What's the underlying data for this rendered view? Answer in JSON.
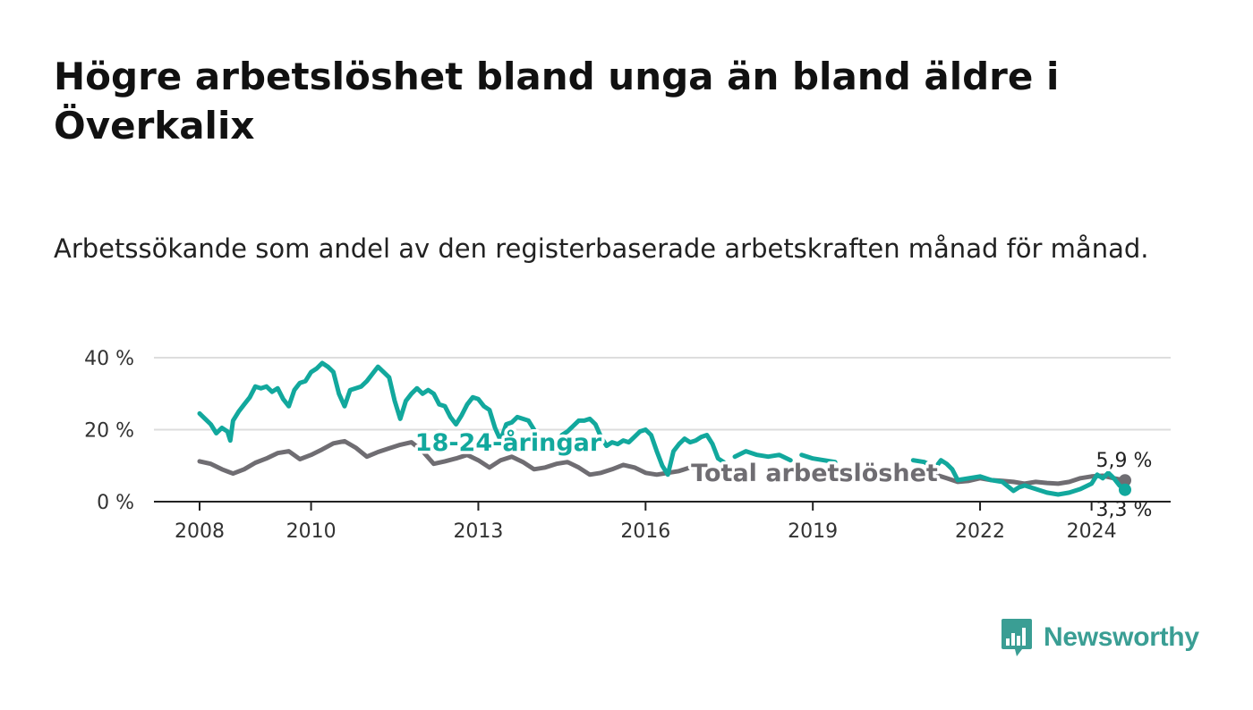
{
  "title": "Högre arbetslöshet bland unga än bland äldre i Överkalix",
  "subtitle": "Arbetssökande som andel av den registerbaserade arbetskraften månad för månad.",
  "brand": "Newsworthy",
  "colors": {
    "youth": "#12a89d",
    "total": "#6f6d72",
    "grid": "#dddddd",
    "axis": "#222222",
    "brand": "#3a9e94"
  },
  "chart_data": {
    "type": "line",
    "ylim": [
      0,
      40
    ],
    "xlim": [
      2008.0,
      2024.6
    ],
    "y_ticks": [
      {
        "value": 0,
        "label": "0 %"
      },
      {
        "value": 20,
        "label": "20 %"
      },
      {
        "value": 40,
        "label": "40 %"
      }
    ],
    "x_ticks": [
      {
        "value": 2008,
        "label": "2008"
      },
      {
        "value": 2010,
        "label": "2010"
      },
      {
        "value": 2013,
        "label": "2013"
      },
      {
        "value": 2016,
        "label": "2016"
      },
      {
        "value": 2019,
        "label": "2019"
      },
      {
        "value": 2022,
        "label": "2022"
      },
      {
        "value": 2024,
        "label": "2024"
      }
    ],
    "grid": true,
    "series": [
      {
        "name": "Total arbetslöshet",
        "color": "#6f6d72",
        "end_label": "5,9 %",
        "points": [
          [
            2008.0,
            11.2
          ],
          [
            2008.2,
            10.5
          ],
          [
            2008.4,
            9.0
          ],
          [
            2008.6,
            7.8
          ],
          [
            2008.8,
            9.0
          ],
          [
            2009.0,
            10.8
          ],
          [
            2009.2,
            12.0
          ],
          [
            2009.4,
            13.5
          ],
          [
            2009.6,
            14.0
          ],
          [
            2009.8,
            11.8
          ],
          [
            2010.0,
            13.0
          ],
          [
            2010.2,
            14.5
          ],
          [
            2010.4,
            16.2
          ],
          [
            2010.6,
            16.8
          ],
          [
            2010.8,
            15.0
          ],
          [
            2011.0,
            12.5
          ],
          [
            2011.2,
            13.8
          ],
          [
            2011.4,
            14.8
          ],
          [
            2011.6,
            15.8
          ],
          [
            2011.8,
            16.5
          ],
          [
            2012.0,
            14.0
          ],
          [
            2012.2,
            10.5
          ],
          [
            2012.4,
            11.2
          ],
          [
            2012.6,
            12.0
          ],
          [
            2012.8,
            13.0
          ],
          [
            2013.0,
            11.5
          ],
          [
            2013.2,
            9.5
          ],
          [
            2013.4,
            11.5
          ],
          [
            2013.6,
            12.5
          ],
          [
            2013.8,
            11.0
          ],
          [
            2014.0,
            9.0
          ],
          [
            2014.2,
            9.5
          ],
          [
            2014.4,
            10.5
          ],
          [
            2014.6,
            11.0
          ],
          [
            2014.8,
            9.5
          ],
          [
            2015.0,
            7.5
          ],
          [
            2015.2,
            8.0
          ],
          [
            2015.4,
            9.0
          ],
          [
            2015.6,
            10.2
          ],
          [
            2015.8,
            9.5
          ],
          [
            2016.0,
            8.0
          ],
          [
            2016.2,
            7.5
          ],
          [
            2016.4,
            8.0
          ],
          [
            2016.6,
            8.5
          ],
          [
            2016.8,
            9.5
          ],
          [
            2017.0,
            9.0
          ],
          [
            2017.2,
            9.5
          ],
          [
            2017.4,
            9.0
          ],
          null,
          [
            2021.0,
            8.8
          ],
          [
            2021.2,
            7.5
          ],
          [
            2021.4,
            6.5
          ],
          [
            2021.6,
            5.5
          ],
          [
            2021.8,
            5.8
          ],
          [
            2022.0,
            6.5
          ],
          [
            2022.2,
            6.0
          ],
          [
            2022.4,
            5.8
          ],
          [
            2022.6,
            5.5
          ],
          [
            2022.8,
            5.0
          ],
          [
            2023.0,
            5.5
          ],
          [
            2023.2,
            5.2
          ],
          [
            2023.4,
            5.0
          ],
          [
            2023.6,
            5.5
          ],
          [
            2023.8,
            6.5
          ],
          [
            2024.0,
            7.0
          ],
          [
            2024.2,
            7.2
          ],
          [
            2024.4,
            6.5
          ],
          [
            2024.6,
            5.9
          ]
        ]
      },
      {
        "name": "18-24-åringar",
        "color": "#12a89d",
        "end_label": "3,3 %",
        "points": [
          [
            2008.0,
            24.5
          ],
          [
            2008.1,
            23.0
          ],
          [
            2008.2,
            21.5
          ],
          [
            2008.3,
            19.0
          ],
          [
            2008.4,
            20.5
          ],
          [
            2008.5,
            19.5
          ],
          [
            2008.55,
            17.0
          ],
          [
            2008.6,
            22.5
          ],
          [
            2008.7,
            25.0
          ],
          [
            2008.8,
            27.0
          ],
          [
            2008.9,
            29.0
          ],
          [
            2009.0,
            32.0
          ],
          [
            2009.1,
            31.5
          ],
          [
            2009.2,
            32.0
          ],
          [
            2009.3,
            30.5
          ],
          [
            2009.4,
            31.5
          ],
          [
            2009.5,
            28.5
          ],
          [
            2009.6,
            26.5
          ],
          [
            2009.7,
            31.0
          ],
          [
            2009.8,
            33.0
          ],
          [
            2009.9,
            33.5
          ],
          [
            2010.0,
            36.0
          ],
          [
            2010.1,
            37.0
          ],
          [
            2010.2,
            38.5
          ],
          [
            2010.3,
            37.5
          ],
          [
            2010.4,
            36.0
          ],
          [
            2010.5,
            30.0
          ],
          [
            2010.6,
            26.5
          ],
          [
            2010.7,
            31.0
          ],
          [
            2010.8,
            31.5
          ],
          [
            2010.9,
            32.0
          ],
          [
            2011.0,
            33.5
          ],
          [
            2011.1,
            35.5
          ],
          [
            2011.2,
            37.5
          ],
          [
            2011.3,
            36.0
          ],
          [
            2011.4,
            34.5
          ],
          [
            2011.5,
            28.0
          ],
          [
            2011.6,
            23.0
          ],
          [
            2011.7,
            28.0
          ],
          [
            2011.8,
            30.0
          ],
          [
            2011.9,
            31.5
          ],
          [
            2012.0,
            30.0
          ],
          [
            2012.1,
            31.0
          ],
          [
            2012.2,
            30.0
          ],
          [
            2012.3,
            27.0
          ],
          [
            2012.4,
            26.5
          ],
          [
            2012.5,
            23.5
          ],
          [
            2012.6,
            21.5
          ],
          [
            2012.7,
            24.0
          ],
          [
            2012.8,
            27.0
          ],
          [
            2012.9,
            29.0
          ],
          [
            2013.0,
            28.5
          ],
          [
            2013.1,
            26.5
          ],
          [
            2013.2,
            25.5
          ],
          [
            2013.3,
            20.5
          ],
          [
            2013.4,
            17.0
          ],
          [
            2013.5,
            21.5
          ],
          [
            2013.6,
            22.0
          ],
          [
            2013.7,
            23.5
          ],
          [
            2013.8,
            23.0
          ],
          [
            2013.9,
            22.5
          ],
          [
            2014.0,
            20.0
          ],
          null,
          [
            2014.5,
            18.5
          ],
          [
            2014.6,
            19.5
          ],
          [
            2014.7,
            21.0
          ],
          [
            2014.8,
            22.5
          ],
          [
            2014.9,
            22.5
          ],
          [
            2015.0,
            23.0
          ],
          [
            2015.1,
            21.5
          ],
          [
            2015.2,
            18.0
          ],
          [
            2015.3,
            15.5
          ],
          [
            2015.4,
            16.5
          ],
          [
            2015.5,
            16.0
          ],
          [
            2015.6,
            17.0
          ],
          [
            2015.7,
            16.5
          ],
          [
            2015.8,
            18.0
          ],
          [
            2015.9,
            19.5
          ],
          [
            2016.0,
            20.0
          ],
          [
            2016.1,
            18.5
          ],
          [
            2016.2,
            14.0
          ],
          [
            2016.3,
            10.0
          ],
          [
            2016.4,
            7.5
          ],
          [
            2016.5,
            14.0
          ],
          [
            2016.6,
            16.0
          ],
          [
            2016.7,
            17.5
          ],
          [
            2016.8,
            16.5
          ],
          [
            2016.9,
            17.0
          ],
          [
            2017.0,
            18.0
          ],
          [
            2017.1,
            18.5
          ],
          [
            2017.2,
            16.0
          ],
          [
            2017.3,
            12.0
          ],
          [
            2017.4,
            11.0
          ],
          null,
          [
            2017.6,
            12.5
          ],
          [
            2017.8,
            14.0
          ],
          [
            2018.0,
            13.0
          ],
          [
            2018.2,
            12.5
          ],
          [
            2018.4,
            13.0
          ],
          [
            2018.6,
            11.5
          ],
          null,
          [
            2018.8,
            13.0
          ],
          [
            2019.0,
            12.0
          ],
          [
            2019.2,
            11.5
          ],
          [
            2019.4,
            11.0
          ],
          null,
          [
            2020.8,
            11.5
          ],
          [
            2021.0,
            11.0
          ],
          [
            2021.2,
            9.5
          ],
          [
            2021.3,
            11.5
          ],
          [
            2021.4,
            10.5
          ],
          [
            2021.5,
            9.0
          ],
          [
            2021.6,
            6.0
          ],
          [
            2021.8,
            6.5
          ],
          [
            2022.0,
            7.0
          ],
          [
            2022.2,
            6.0
          ],
          [
            2022.4,
            5.5
          ],
          [
            2022.6,
            3.0
          ],
          [
            2022.7,
            4.0
          ],
          [
            2022.8,
            4.5
          ],
          [
            2023.0,
            3.5
          ],
          [
            2023.2,
            2.5
          ],
          [
            2023.4,
            2.0
          ],
          [
            2023.6,
            2.5
          ],
          [
            2023.8,
            3.5
          ],
          [
            2024.0,
            5.0
          ],
          [
            2024.1,
            7.5
          ],
          [
            2024.2,
            6.5
          ],
          [
            2024.3,
            8.0
          ],
          [
            2024.4,
            6.5
          ],
          [
            2024.5,
            4.5
          ],
          [
            2024.6,
            3.3
          ]
        ]
      }
    ]
  }
}
